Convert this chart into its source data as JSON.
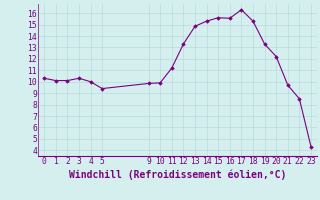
{
  "x": [
    0,
    1,
    2,
    3,
    4,
    5,
    9,
    10,
    11,
    12,
    13,
    14,
    15,
    16,
    17,
    18,
    19,
    20,
    21,
    22,
    23
  ],
  "y": [
    10.3,
    10.1,
    10.1,
    10.3,
    10.0,
    9.4,
    9.85,
    9.9,
    11.2,
    13.3,
    14.85,
    15.3,
    15.6,
    15.55,
    16.3,
    15.3,
    13.3,
    12.2,
    9.7,
    8.5,
    4.3
  ],
  "xticks": [
    0,
    1,
    2,
    3,
    4,
    5,
    9,
    10,
    11,
    12,
    13,
    14,
    15,
    16,
    17,
    18,
    19,
    20,
    21,
    22,
    23
  ],
  "yticks": [
    4,
    5,
    6,
    7,
    8,
    9,
    10,
    11,
    12,
    13,
    14,
    15,
    16
  ],
  "xlabel": "Windchill (Refroidissement éolien,°C)",
  "line_color": "#7b0080",
  "marker_color": "#7b0080",
  "bg_color": "#d5efef",
  "grid_color": "#b8dcdc",
  "xlim": [
    -0.5,
    23.5
  ],
  "ylim": [
    3.5,
    16.8
  ],
  "tick_label_fontsize": 5.8,
  "xlabel_fontsize": 7.0,
  "figwidth": 3.2,
  "figheight": 2.0,
  "dpi": 100
}
